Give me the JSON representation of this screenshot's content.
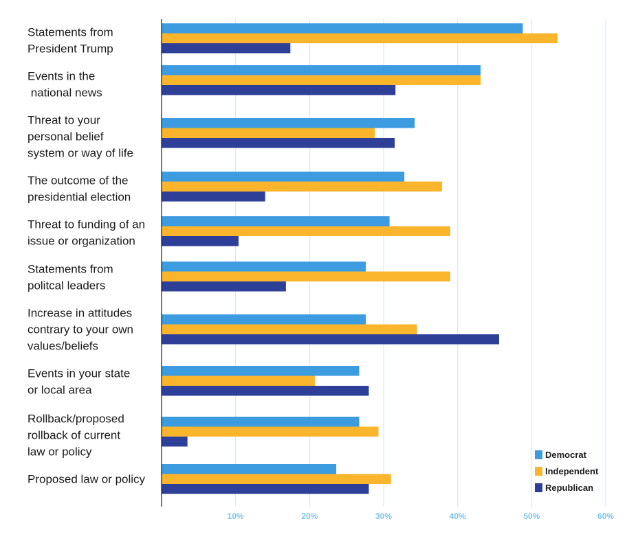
{
  "chart_data": {
    "type": "bar",
    "orientation": "horizontal",
    "title": "",
    "xlabel": "",
    "ylabel": "",
    "xlim": [
      0,
      60
    ],
    "ticks": [
      10,
      20,
      30,
      40,
      50,
      60
    ],
    "tick_labels": [
      "10%",
      "20%",
      "30%",
      "40%",
      "50%",
      "60%"
    ],
    "grid": true,
    "legend_position": "bottom-right",
    "categories": [
      [
        "Statements from",
        "President Trump"
      ],
      [
        "Events in the",
        " national news"
      ],
      [
        "Threat to your",
        "personal belief",
        "system or way of life"
      ],
      [
        "The outcome of the",
        "presidential election"
      ],
      [
        "Threat to funding of an",
        "issue or organization"
      ],
      [
        "Statements from",
        "politcal leaders"
      ],
      [
        "Increase in attitudes",
        "contrary to your own",
        "values/beliefs"
      ],
      [
        "Events in your state",
        "or local area"
      ],
      [
        "Rollback/proposed",
        "rollback of current",
        "law or policy"
      ],
      [
        "Proposed law or policy"
      ]
    ],
    "series": [
      {
        "name": "Democrat",
        "color": "#3d9be0",
        "values": [
          48.8,
          43.1,
          34.2,
          32.8,
          30.8,
          27.6,
          27.6,
          26.7,
          26.7,
          23.6
        ]
      },
      {
        "name": "Independent",
        "color": "#fbb52c",
        "values": [
          53.5,
          43.1,
          28.8,
          37.9,
          39.0,
          39.0,
          34.5,
          20.7,
          29.3,
          31.0
        ]
      },
      {
        "name": "Republican",
        "color": "#2e3f98",
        "values": [
          17.4,
          31.6,
          31.5,
          14.0,
          10.4,
          16.8,
          45.6,
          28.0,
          3.5,
          28.0
        ]
      }
    ]
  }
}
